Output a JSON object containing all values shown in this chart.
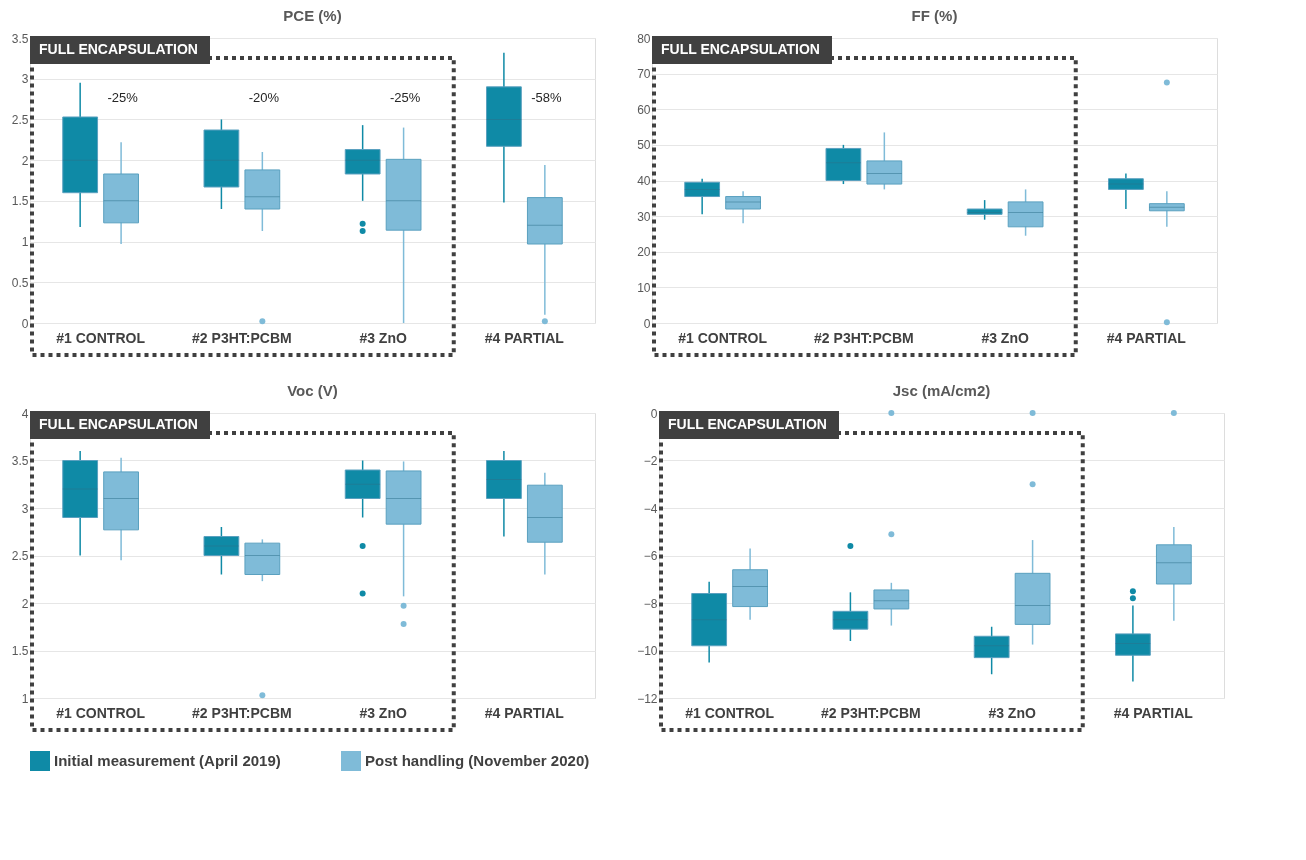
{
  "chart_data": [
    {
      "type": "box",
      "title": "PCE (%)",
      "categories": [
        "#1 CONTROL",
        "#2 P3HT:PCBM",
        "#3 ZnO",
        "#4 PARTIAL"
      ],
      "series": [
        {
          "name": "Initial measurement (April 2019)",
          "color": "#0f8aa6",
          "boxes": [
            {
              "low": 1.18,
              "q1": 1.6,
              "median": 2.0,
              "q3": 2.53,
              "high": 2.95
            },
            {
              "low": 1.4,
              "q1": 1.67,
              "median": 2.0,
              "q3": 2.37,
              "high": 2.5
            },
            {
              "low": 1.5,
              "q1": 1.83,
              "median": 2.0,
              "q3": 2.13,
              "high": 2.43,
              "outliers": [
                1.22,
                1.13
              ]
            },
            {
              "low": 1.48,
              "q1": 2.17,
              "median": 2.5,
              "q3": 2.9,
              "high": 3.32
            }
          ]
        },
        {
          "name": "Post handling (November 2020)",
          "color": "#7fbbd8",
          "boxes": [
            {
              "low": 0.97,
              "q1": 1.23,
              "median": 1.5,
              "q3": 1.83,
              "high": 2.22
            },
            {
              "low": 1.13,
              "q1": 1.4,
              "median": 1.55,
              "q3": 1.88,
              "high": 2.1,
              "outliers": [
                0.02
              ]
            },
            {
              "low": 0.0,
              "q1": 1.14,
              "median": 1.5,
              "q3": 2.01,
              "high": 2.4
            },
            {
              "low": 0.1,
              "q1": 0.97,
              "median": 1.2,
              "q3": 1.54,
              "high": 1.94,
              "outliers": [
                0.02
              ]
            }
          ]
        }
      ],
      "ylim": [
        0,
        3.5
      ],
      "yticks": [
        0,
        0.5,
        1,
        1.5,
        2,
        2.5,
        3,
        3.5
      ],
      "grid": "y",
      "legend": "bottom",
      "annotations": [
        "FULL ENCAPSULATION",
        "-25%",
        "-20%",
        "-25%",
        "-58%"
      ]
    },
    {
      "type": "box",
      "title": "FF (%)",
      "categories": [
        "#1 CONTROL",
        "#2 P3HT:PCBM",
        "#3 ZnO",
        "#4 PARTIAL"
      ],
      "series": [
        {
          "name": "Initial measurement (April 2019)",
          "color": "#0f8aa6",
          "boxes": [
            {
              "low": 30.5,
              "q1": 35.5,
              "median": 37.5,
              "q3": 39.5,
              "high": 40.5
            },
            {
              "low": 39,
              "q1": 40,
              "median": 45,
              "q3": 49,
              "high": 50
            },
            {
              "low": 29,
              "q1": 30.5,
              "median": 31,
              "q3": 32,
              "high": 34.5
            },
            {
              "low": 32,
              "q1": 37.5,
              "median": 39,
              "q3": 40.5,
              "high": 42
            }
          ]
        },
        {
          "name": "Post handling (November 2020)",
          "color": "#7fbbd8",
          "boxes": [
            {
              "low": 28,
              "q1": 32,
              "median": 34,
              "q3": 35.5,
              "high": 37
            },
            {
              "low": 37.5,
              "q1": 39,
              "median": 42,
              "q3": 45.5,
              "high": 53.5
            },
            {
              "low": 24.5,
              "q1": 27,
              "median": 31,
              "q3": 34,
              "high": 37.5
            },
            {
              "low": 27,
              "q1": 31.5,
              "median": 32.5,
              "q3": 33.5,
              "high": 37,
              "outliers": [
                67.5,
                0.2
              ]
            }
          ]
        }
      ],
      "ylim": [
        0,
        80
      ],
      "yticks": [
        0,
        10,
        20,
        30,
        40,
        50,
        60,
        70,
        80
      ],
      "grid": "y",
      "legend": "bottom",
      "annotations": [
        "FULL ENCAPSULATION"
      ]
    },
    {
      "type": "box",
      "title": "Voc (V)",
      "categories": [
        "#1 CONTROL",
        "#2 P3HT:PCBM",
        "#3 ZnO",
        "#4 PARTIAL"
      ],
      "series": [
        {
          "name": "Initial measurement (April 2019)",
          "color": "#0f8aa6",
          "boxes": [
            {
              "low": 2.5,
              "q1": 2.9,
              "median": 3.2,
              "q3": 3.5,
              "high": 3.6
            },
            {
              "low": 2.3,
              "q1": 2.5,
              "median": 2.6,
              "q3": 2.7,
              "high": 2.8
            },
            {
              "low": 2.9,
              "q1": 3.1,
              "median": 3.25,
              "q3": 3.4,
              "high": 3.5,
              "outliers": [
                2.6,
                2.1
              ]
            },
            {
              "low": 2.7,
              "q1": 3.1,
              "median": 3.3,
              "q3": 3.5,
              "high": 3.6
            }
          ]
        },
        {
          "name": "Post handling (November 2020)",
          "color": "#7fbbd8",
          "boxes": [
            {
              "low": 2.45,
              "q1": 2.77,
              "median": 3.1,
              "q3": 3.38,
              "high": 3.53
            },
            {
              "low": 2.23,
              "q1": 2.3,
              "median": 2.5,
              "q3": 2.63,
              "high": 2.67,
              "outliers": [
                1.03
              ]
            },
            {
              "low": 2.07,
              "q1": 2.83,
              "median": 3.1,
              "q3": 3.39,
              "high": 3.49,
              "outliers": [
                1.97,
                1.78
              ]
            },
            {
              "low": 2.3,
              "q1": 2.64,
              "median": 2.9,
              "q3": 3.24,
              "high": 3.37
            }
          ]
        }
      ],
      "ylim": [
        1,
        4
      ],
      "yticks": [
        1,
        1.5,
        2,
        2.5,
        3,
        3.5,
        4
      ],
      "grid": "y",
      "legend": "bottom",
      "annotations": [
        "FULL ENCAPSULATION"
      ]
    },
    {
      "type": "box",
      "title": "Jsc (mA/cm2)",
      "categories": [
        "#1 CONTROL",
        "#2 P3HT:PCBM",
        "#3 ZnO",
        "#4 PARTIAL"
      ],
      "series": [
        {
          "name": "Initial measurement (April 2019)",
          "color": "#0f8aa6",
          "boxes": [
            {
              "low": -10.5,
              "q1": -9.8,
              "median": -8.7,
              "q3": -7.6,
              "high": -7.1
            },
            {
              "low": -9.6,
              "q1": -9.1,
              "median": -8.7,
              "q3": -8.35,
              "high": -7.55,
              "outliers": [
                -5.6
              ]
            },
            {
              "low": -11,
              "q1": -10.3,
              "median": -9.8,
              "q3": -9.4,
              "high": -9.0
            },
            {
              "low": -11.3,
              "q1": -10.2,
              "median": -9.7,
              "q3": -9.3,
              "high": -8.1,
              "outliers": [
                -7.5,
                -7.8
              ]
            }
          ]
        },
        {
          "name": "Post handling (November 2020)",
          "color": "#7fbbd8",
          "boxes": [
            {
              "low": -8.7,
              "q1": -8.15,
              "median": -7.3,
              "q3": -6.6,
              "high": -5.7
            },
            {
              "low": -8.95,
              "q1": -8.25,
              "median": -7.9,
              "q3": -7.45,
              "high": -7.15,
              "outliers": [
                -5.1,
                0
              ]
            },
            {
              "low": -9.75,
              "q1": -8.9,
              "median": -8.1,
              "q3": -6.75,
              "high": -5.35,
              "outliers": [
                -3.0,
                0
              ]
            },
            {
              "low": -8.75,
              "q1": -7.2,
              "median": -6.3,
              "q3": -5.55,
              "high": -4.8,
              "outliers": [
                0
              ]
            }
          ]
        }
      ],
      "ylim": [
        -12,
        0
      ],
      "yticks": [
        -12,
        -10,
        -8,
        -6,
        -4,
        -2,
        0
      ],
      "grid": "y",
      "legend": "bottom",
      "annotations": [
        "FULL ENCAPSULATION"
      ]
    }
  ]
}
